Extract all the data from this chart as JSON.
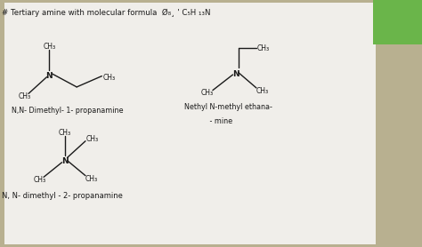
{
  "bg_outer": "#b8b090",
  "bg_paper": "#f0eeea",
  "text_color": "#1a1a1a",
  "green_tab": "#6ab54a",
  "title": "# Tertiary amine with molecular formula  Qrs ' C5H 13N",
  "struct1_label": "N,N- Dimethyl- 1- propanamine",
  "struct2_label1": "Nethyl N-methyl ethana-",
  "struct2_label2": "   - mine",
  "struct3_label": "N, N- dimethyl - 2- propanamine",
  "s1": {
    "nx": 1.3,
    "ny": 3.55
  },
  "s2": {
    "nx": 6.2,
    "ny": 3.6
  },
  "s3": {
    "nx": 1.7,
    "ny": 1.75
  }
}
